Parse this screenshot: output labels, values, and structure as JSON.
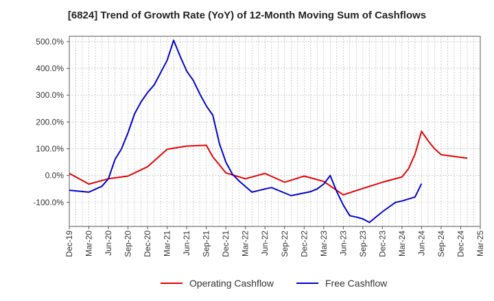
{
  "chart_data": {
    "type": "line",
    "title": "[6824]  Trend of Growth Rate (YoY) of 12-Month Moving Sum of Cashflows",
    "xlabel": "",
    "ylabel": "",
    "ylim": [
      -190,
      520
    ],
    "y_ticks": [
      {
        "value": 500,
        "label": "500.0%"
      },
      {
        "value": 400,
        "label": "400.0%"
      },
      {
        "value": 300,
        "label": "300.0%"
      },
      {
        "value": 200,
        "label": "200.0%"
      },
      {
        "value": 100,
        "label": "100.0%"
      },
      {
        "value": 0,
        "label": "0.0%"
      },
      {
        "value": -100,
        "label": "-100.0%"
      }
    ],
    "x_ticks": [
      "Dec-19",
      "Mar-20",
      "Jun-20",
      "Sep-20",
      "Dec-20",
      "Mar-21",
      "Jun-21",
      "Sep-21",
      "Dec-21",
      "Mar-22",
      "Jun-22",
      "Sep-22",
      "Dec-22",
      "Mar-23",
      "Jun-23",
      "Sep-23",
      "Dec-23",
      "Mar-24",
      "Jun-24",
      "Sep-24",
      "Dec-24",
      "Mar-25"
    ],
    "grid": true,
    "legend_position": "bottom",
    "series": [
      {
        "name": "Operating Cashflow",
        "color": "#e60000",
        "points": [
          [
            0,
            8
          ],
          [
            3,
            -32
          ],
          [
            6,
            -12
          ],
          [
            9,
            -2
          ],
          [
            12,
            33
          ],
          [
            15,
            98
          ],
          [
            18,
            110
          ],
          [
            21,
            113
          ],
          [
            22,
            70
          ],
          [
            24,
            10
          ],
          [
            27,
            -12
          ],
          [
            30,
            8
          ],
          [
            33,
            -25
          ],
          [
            36,
            -2
          ],
          [
            39,
            -22
          ],
          [
            42,
            -72
          ],
          [
            45,
            -48
          ],
          [
            48,
            -25
          ],
          [
            51,
            -5
          ],
          [
            52,
            25
          ],
          [
            53,
            80
          ],
          [
            54,
            165
          ],
          [
            55,
            130
          ],
          [
            56,
            100
          ],
          [
            57,
            78
          ],
          [
            60,
            68
          ],
          [
            61,
            65
          ]
        ]
      },
      {
        "name": "Free Cashflow",
        "color": "#0000cc",
        "points": [
          [
            0,
            -55
          ],
          [
            3,
            -62
          ],
          [
            5,
            -40
          ],
          [
            6,
            -12
          ],
          [
            7,
            60
          ],
          [
            8,
            100
          ],
          [
            9,
            160
          ],
          [
            10,
            230
          ],
          [
            11,
            275
          ],
          [
            12,
            310
          ],
          [
            13,
            338
          ],
          [
            15,
            430
          ],
          [
            16,
            505
          ],
          [
            17,
            445
          ],
          [
            18,
            390
          ],
          [
            19,
            355
          ],
          [
            20,
            305
          ],
          [
            21,
            260
          ],
          [
            22,
            225
          ],
          [
            23,
            120
          ],
          [
            24,
            50
          ],
          [
            25,
            5
          ],
          [
            26,
            -20
          ],
          [
            28,
            -62
          ],
          [
            30,
            -50
          ],
          [
            31,
            -45
          ],
          [
            34,
            -75
          ],
          [
            37,
            -60
          ],
          [
            38,
            -50
          ],
          [
            39,
            -32
          ],
          [
            40,
            0
          ],
          [
            41,
            -60
          ],
          [
            42,
            -110
          ],
          [
            43,
            -150
          ],
          [
            44,
            -155
          ],
          [
            45,
            -162
          ],
          [
            46,
            -175
          ],
          [
            48,
            -135
          ],
          [
            50,
            -100
          ],
          [
            51,
            -95
          ],
          [
            53,
            -80
          ],
          [
            54,
            -30
          ]
        ]
      }
    ]
  }
}
